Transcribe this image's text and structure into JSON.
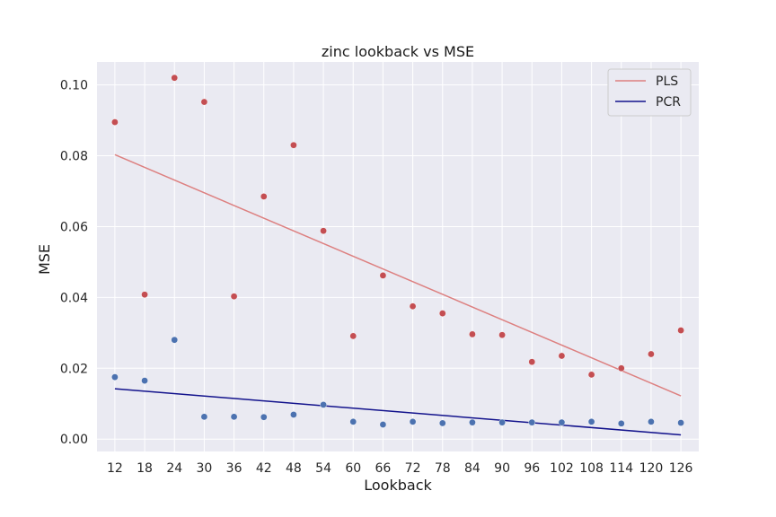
{
  "chart_data": {
    "type": "scatter",
    "title": "zinc lookback vs MSE",
    "xlabel": "Lookback",
    "ylabel": "MSE",
    "x": [
      12,
      18,
      24,
      30,
      36,
      42,
      48,
      54,
      60,
      66,
      72,
      78,
      84,
      90,
      96,
      102,
      108,
      114,
      120,
      126
    ],
    "xlim": [
      8.4,
      129.6
    ],
    "ylim": [
      -0.0035,
      0.1065
    ],
    "yticks": [
      0.0,
      0.02,
      0.04,
      0.06,
      0.08,
      0.1
    ],
    "ytick_labels": [
      "0.00",
      "0.02",
      "0.04",
      "0.06",
      "0.08",
      "0.10"
    ],
    "grid": true,
    "legend_position": "top-right",
    "series": [
      {
        "name": "PLS",
        "points_color": "#c44e52",
        "line_color": "#dd8080",
        "values": [
          0.0895,
          0.0408,
          0.102,
          0.0952,
          0.0403,
          0.0685,
          0.083,
          0.0588,
          0.0291,
          0.0462,
          0.0375,
          0.0355,
          0.0296,
          0.0294,
          0.0218,
          0.0235,
          0.0182,
          0.02,
          0.024,
          0.0307
        ],
        "fit_line": {
          "x": [
            12,
            126
          ],
          "y": [
            0.0803,
            0.0122
          ]
        }
      },
      {
        "name": "PCR",
        "points_color": "#4c72b0",
        "line_color": "#12128c",
        "values": [
          0.0175,
          0.0165,
          0.028,
          0.0063,
          0.0063,
          0.0062,
          0.0069,
          0.0097,
          0.0049,
          0.0041,
          0.0049,
          0.0045,
          0.0047,
          0.0047,
          0.0047,
          0.0047,
          0.0049,
          0.0044,
          0.0049,
          0.0046
        ],
        "fit_line": {
          "x": [
            12,
            126
          ],
          "y": [
            0.0142,
            0.0012
          ]
        }
      }
    ]
  }
}
